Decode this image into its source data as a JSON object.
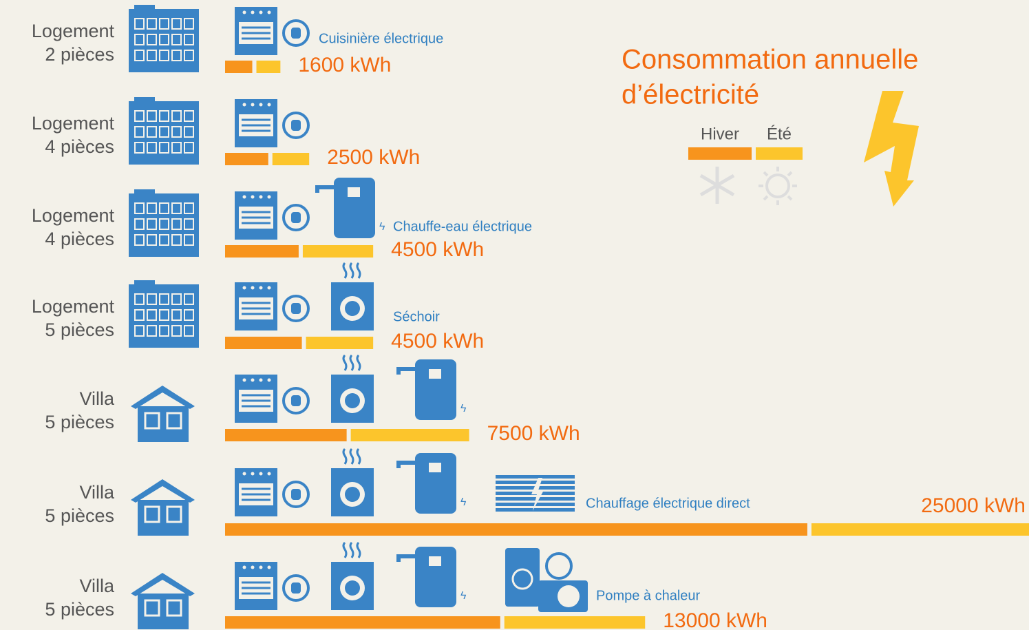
{
  "chart_data": {
    "type": "bar",
    "orientation": "horizontal",
    "stacked": true,
    "title": [
      "Consommation annuelle",
      "d’électricité"
    ],
    "categories": [
      [
        "Logement",
        "2 pièces"
      ],
      [
        "Logement",
        "4 pièces"
      ],
      [
        "Logement",
        "4 pièces"
      ],
      [
        "Logement",
        "5 pièces"
      ],
      [
        "Villa",
        "5 pièces"
      ],
      [
        "Villa",
        "5 pièces"
      ],
      [
        "Villa",
        "5 pièces"
      ]
    ],
    "appliance_labels": [
      "Cuisinière électrique",
      null,
      "Chauffe-eau électrique",
      "Séchoir",
      null,
      "Chauffage électrique direct",
      "Pompe à chaleur"
    ],
    "series": [
      {
        "name": "Hiver",
        "color": "#f7941d",
        "values": [
          850,
          1350,
          2300,
          2400,
          3800,
          18200,
          8600
        ]
      },
      {
        "name": "Été",
        "color": "#fcc52c",
        "values": [
          750,
          1150,
          2200,
          2100,
          3700,
          6800,
          4400
        ]
      }
    ],
    "totals": [
      1600,
      2500,
      4500,
      4500,
      7500,
      25000,
      13000
    ],
    "total_labels": [
      "1600 kWh",
      "2500 kWh",
      "4500 kWh",
      "4500 kWh",
      "7500 kWh",
      "25000 kWh",
      "13000 kWh"
    ],
    "xlim": [
      0,
      25000
    ]
  }
}
